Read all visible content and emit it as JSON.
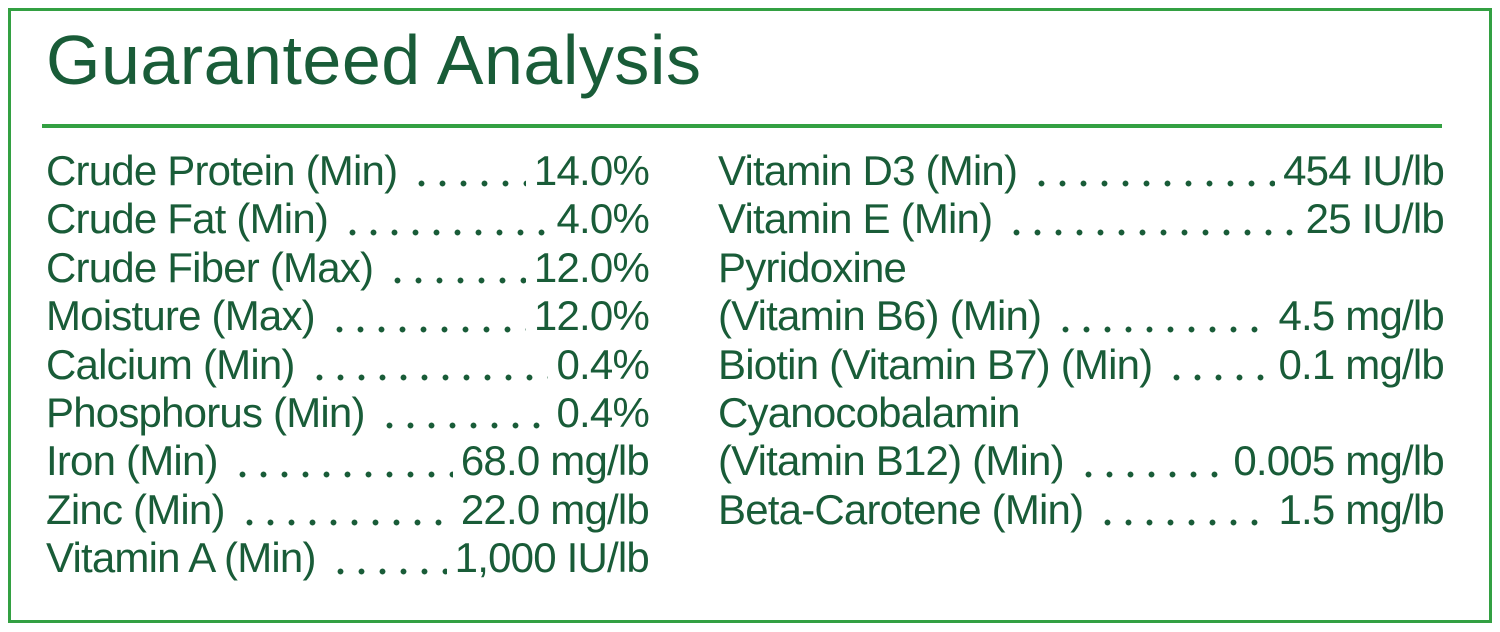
{
  "title": "Guaranteed Analysis",
  "colors": {
    "text_green": "#195c38",
    "accent_green": "#33a042",
    "background": "#ffffff"
  },
  "columns": {
    "left": {
      "rows": [
        {
          "label": "Crude Protein (Min)",
          "value": "14.0%"
        },
        {
          "label": "Crude Fat (Min)",
          "value": "4.0%"
        },
        {
          "label": "Crude Fiber (Max)",
          "value": "12.0%"
        },
        {
          "label": "Moisture (Max)",
          "value": "12.0%"
        },
        {
          "label": "Calcium (Min)",
          "value": "0.4%"
        },
        {
          "label": "Phosphorus (Min)",
          "value": "0.4%"
        },
        {
          "label": "Iron (Min)",
          "value": "68.0 mg/lb"
        },
        {
          "label": "Zinc (Min)",
          "value": "22.0 mg/lb"
        },
        {
          "label": "Vitamin A (Min)",
          "value": "1,000 IU/lb"
        }
      ]
    },
    "right": {
      "rows": [
        {
          "label": "Vitamin D3 (Min)",
          "value": "454 IU/lb"
        },
        {
          "label": "Vitamin E (Min)",
          "value": "25 IU/lb"
        },
        {
          "label": "Pyridoxine",
          "value": ""
        },
        {
          "label": "(Vitamin B6) (Min)",
          "value": "4.5 mg/lb"
        },
        {
          "label": "Biotin (Vitamin B7) (Min)",
          "value": "0.1 mg/lb"
        },
        {
          "label": "Cyanocobalamin",
          "value": ""
        },
        {
          "label": "(Vitamin B12) (Min)",
          "value": "0.005 mg/lb"
        },
        {
          "label": "Beta-Carotene (Min)",
          "value": "1.5 mg/lb"
        }
      ]
    }
  }
}
